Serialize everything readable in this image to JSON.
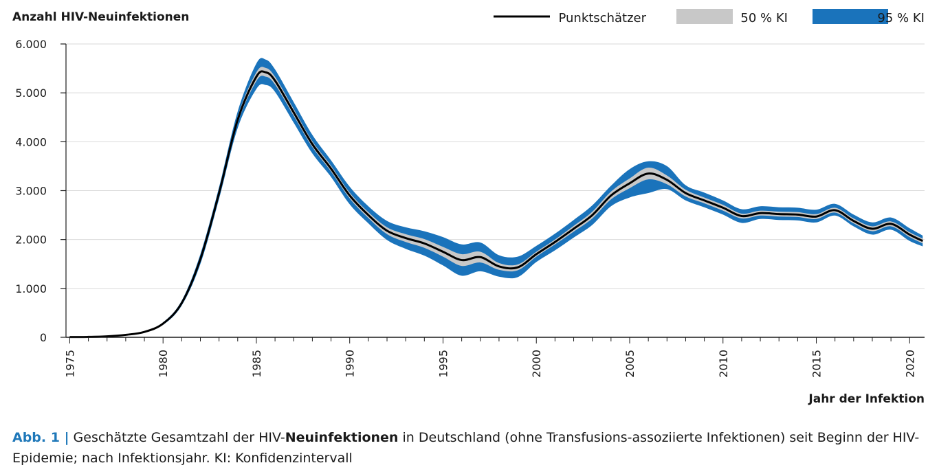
{
  "chart_data": {
    "type": "area",
    "ylabel": "Anzahl HIV-Neuinfektionen",
    "xlabel": "Jahr der Infektion",
    "xlim": [
      1974.8,
      2020.8
    ],
    "ylim": [
      0,
      6000
    ],
    "yticks": [
      0,
      1000,
      2000,
      3000,
      4000,
      5000,
      6000
    ],
    "ytick_labels": [
      "0",
      "1.000",
      "2.000",
      "3.000",
      "4.000",
      "5.000",
      "6.000"
    ],
    "xticks": [
      1975,
      1980,
      1985,
      1990,
      1995,
      2000,
      2005,
      2010,
      2015,
      2020
    ],
    "xtick_labels": [
      "1975",
      "1980",
      "1985",
      "1990",
      "1995",
      "2000",
      "2005",
      "2010",
      "2015",
      "2020"
    ],
    "grid": "horizontal",
    "legend": {
      "placement": "top-right",
      "entries": [
        {
          "name": "Punktschätzer",
          "kind": "line",
          "color": "#000000"
        },
        {
          "name": "50 % KI",
          "kind": "band",
          "color": "#c8c8c8"
        },
        {
          "name": "95 % KI",
          "kind": "band",
          "color": "#1a73bb"
        }
      ]
    },
    "x": [
      1975,
      1976,
      1977,
      1978,
      1979,
      1980,
      1981,
      1982,
      1983,
      1984,
      1985,
      1985.5,
      1986,
      1987,
      1988,
      1989,
      1990,
      1991,
      1992,
      1993,
      1994,
      1995,
      1996,
      1997,
      1998,
      1999,
      2000,
      2001,
      2002,
      2003,
      2004,
      2005,
      2006,
      2007,
      2008,
      2009,
      2010,
      2011,
      2012,
      2013,
      2014,
      2015,
      2016,
      2017,
      2018,
      2019,
      2020,
      2020.7
    ],
    "series": [
      {
        "name": "Punktschätzer",
        "color": "#000000",
        "values": [
          5,
          8,
          20,
          50,
          110,
          280,
          700,
          1600,
          2950,
          4450,
          5330,
          5420,
          5250,
          4600,
          3950,
          3450,
          2900,
          2500,
          2180,
          2030,
          1920,
          1750,
          1580,
          1640,
          1450,
          1430,
          1700,
          1950,
          2220,
          2500,
          2900,
          3150,
          3350,
          3220,
          2950,
          2800,
          2650,
          2480,
          2540,
          2520,
          2510,
          2470,
          2600,
          2380,
          2220,
          2320,
          2100,
          1970
        ]
      },
      {
        "name": "50 % KI",
        "color": "#c8c8c8",
        "lower": [
          5,
          8,
          20,
          48,
          106,
          270,
          680,
          1560,
          2900,
          4380,
          5240,
          5330,
          5170,
          4530,
          3890,
          3390,
          2840,
          2440,
          2110,
          1950,
          1830,
          1650,
          1460,
          1530,
          1380,
          1370,
          1650,
          1900,
          2160,
          2430,
          2820,
          3050,
          3230,
          3130,
          2880,
          2740,
          2590,
          2430,
          2490,
          2470,
          2460,
          2420,
          2550,
          2330,
          2170,
          2270,
          2050,
          1920
        ],
        "upper": [
          5,
          8,
          20,
          52,
          114,
          290,
          720,
          1640,
          3000,
          4520,
          5420,
          5510,
          5330,
          4670,
          4010,
          3510,
          2960,
          2560,
          2250,
          2110,
          2010,
          1850,
          1700,
          1750,
          1520,
          1490,
          1750,
          2000,
          2280,
          2570,
          2980,
          3250,
          3470,
          3310,
          3020,
          2860,
          2710,
          2530,
          2590,
          2570,
          2560,
          2520,
          2650,
          2430,
          2270,
          2370,
          2150,
          2020
        ]
      },
      {
        "name": "95 % KI",
        "color": "#1a73bb",
        "lower": [
          4,
          7,
          18,
          44,
          100,
          255,
          650,
          1500,
          2830,
          4280,
          5080,
          5160,
          5020,
          4390,
          3760,
          3280,
          2720,
          2330,
          1990,
          1810,
          1670,
          1470,
          1260,
          1350,
          1240,
          1230,
          1540,
          1780,
          2040,
          2300,
          2680,
          2860,
          2950,
          3030,
          2800,
          2660,
          2510,
          2340,
          2420,
          2400,
          2390,
          2350,
          2490,
          2270,
          2100,
          2200,
          1970,
          1860
        ],
        "upper": [
          6,
          9,
          22,
          56,
          120,
          305,
          750,
          1700,
          3070,
          4620,
          5600,
          5680,
          5480,
          4810,
          4140,
          3620,
          3080,
          2680,
          2380,
          2250,
          2170,
          2050,
          1900,
          1940,
          1680,
          1650,
          1870,
          2120,
          2400,
          2700,
          3100,
          3440,
          3600,
          3500,
          3110,
          2960,
          2800,
          2620,
          2680,
          2660,
          2650,
          2610,
          2730,
          2510,
          2350,
          2450,
          2230,
          2080
        ]
      }
    ]
  },
  "caption": {
    "label": "Abb. 1 |",
    "text_before": " Geschätzte Gesamtzahl der HIV-",
    "text_bold": "Neuinfektionen",
    "text_after": " in Deutschland (ohne Transfusions-assoziierte Infektionen) seit Beginn der HIV-Epidemie; nach Infektionsjahr. KI: Konfidenzintervall"
  }
}
